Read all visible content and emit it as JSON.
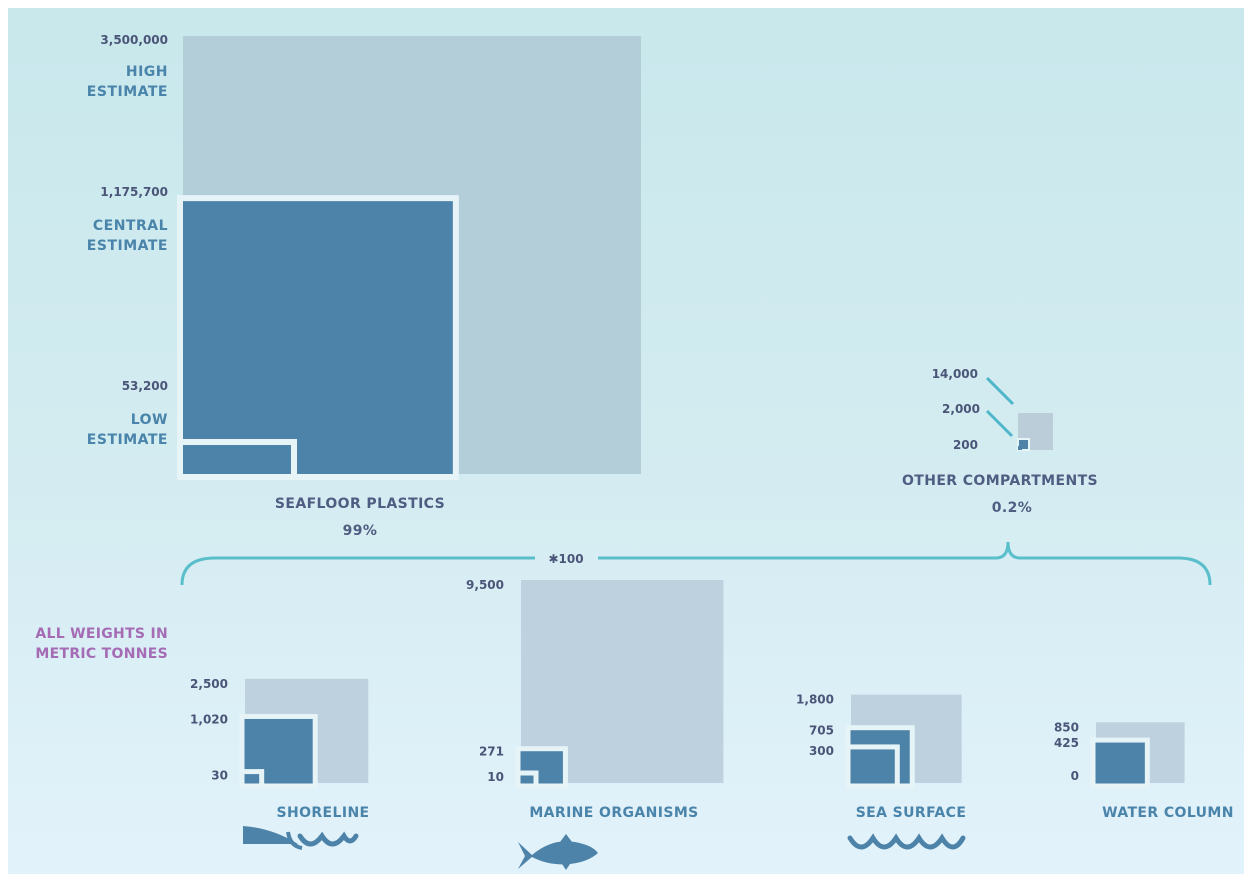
{
  "chart_data": {
    "type": "nested-squares",
    "units_note": [
      "ALL WEIGHTS IN",
      "METRIC TONNES"
    ],
    "scale_note": "✱100",
    "seafloor": {
      "name": "SEAFLOOR PLASTICS",
      "share": "99%",
      "high": 3500000,
      "central": 1175700,
      "low": 53200,
      "high_label": "3,500,000",
      "central_label": "1,175,700",
      "low_label": "53,200",
      "high_text": [
        "HIGH",
        "ESTIMATE"
      ],
      "central_text": [
        "CENTRAL",
        "ESTIMATE"
      ],
      "low_text": [
        "LOW",
        "ESTIMATE"
      ]
    },
    "other": {
      "name": "OTHER COMPARTMENTS",
      "share": "0.2%",
      "high": 14000,
      "central": 2000,
      "low": 200,
      "high_label": "14,000",
      "central_label": "2,000",
      "low_label": "200"
    },
    "compartments": [
      {
        "name": "SHORELINE",
        "high": 2500,
        "central": 1020,
        "low": 30,
        "labels": [
          "2,500",
          "1,020",
          "30"
        ]
      },
      {
        "name": "MARINE ORGANISMS",
        "high": 9500,
        "central": 271,
        "low": 10,
        "labels": [
          "9,500",
          "271",
          "10"
        ]
      },
      {
        "name": "SEA SURFACE",
        "high": 1800,
        "central": 705,
        "low": 300,
        "labels": [
          "1,800",
          "705",
          "300"
        ]
      },
      {
        "name": "WATER COLUMN",
        "high": 850,
        "central": 425,
        "low": 0,
        "labels": [
          "850",
          "425",
          "0"
        ]
      }
    ]
  }
}
